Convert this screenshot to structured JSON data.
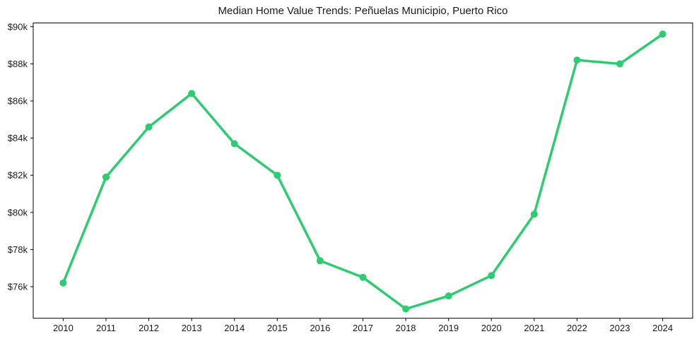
{
  "chart_data": {
    "type": "line",
    "title": "Median Home Value Trends: Peñuelas Municipio, Puerto Rico",
    "x": [
      2010,
      2011,
      2012,
      2013,
      2014,
      2015,
      2016,
      2017,
      2018,
      2019,
      2020,
      2021,
      2022,
      2023,
      2024
    ],
    "values": [
      76200,
      81900,
      84600,
      86400,
      83700,
      82000,
      77400,
      76500,
      74800,
      75500,
      76600,
      79900,
      88200,
      88000,
      89600
    ],
    "xtick_labels": [
      "2010",
      "2011",
      "2012",
      "2013",
      "2014",
      "2015",
      "2016",
      "2017",
      "2018",
      "2019",
      "2020",
      "2021",
      "2022",
      "2023",
      "2024"
    ],
    "yticks": [
      76000,
      78000,
      80000,
      82000,
      84000,
      86000,
      88000,
      90000
    ],
    "ytick_labels": [
      "$76k",
      "$78k",
      "$80k",
      "$82k",
      "$84k",
      "$86k",
      "$88k",
      "$90k"
    ],
    "xlim": [
      2009.3,
      2024.7
    ],
    "ylim": [
      74300,
      90200
    ],
    "grid": false,
    "legend": "none",
    "line_color": "#2ecc71",
    "marker": "circle",
    "background_color": "#ffffff",
    "axis_color": "#000000",
    "text_color": "#1a1a1a"
  }
}
